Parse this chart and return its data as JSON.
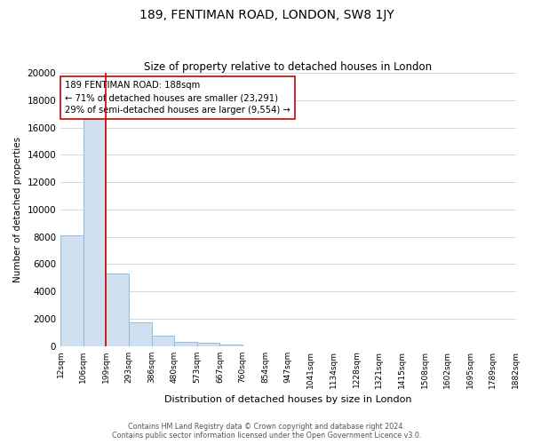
{
  "title": "189, FENTIMAN ROAD, LONDON, SW8 1JY",
  "subtitle": "Size of property relative to detached houses in London",
  "xlabel": "Distribution of detached houses by size in London",
  "ylabel": "Number of detached properties",
  "bar_values": [
    8100,
    16600,
    5300,
    1750,
    750,
    300,
    250,
    100,
    0,
    0,
    0,
    0,
    0,
    0,
    0,
    0,
    0,
    0,
    0,
    0
  ],
  "bin_labels": [
    "12sqm",
    "106sqm",
    "199sqm",
    "293sqm",
    "386sqm",
    "480sqm",
    "573sqm",
    "667sqm",
    "760sqm",
    "854sqm",
    "947sqm",
    "1041sqm",
    "1134sqm",
    "1228sqm",
    "1321sqm",
    "1415sqm",
    "1508sqm",
    "1602sqm",
    "1695sqm",
    "1789sqm",
    "1882sqm"
  ],
  "bar_color": "#cfe0f0",
  "bar_edge_color": "#8ab4d4",
  "vline_color": "#cc0000",
  "vline_pos": 2,
  "annotation_title": "189 FENTIMAN ROAD: 188sqm",
  "annotation_line1": "← 71% of detached houses are smaller (23,291)",
  "annotation_line2": "29% of semi-detached houses are larger (9,554) →",
  "ylim": [
    0,
    20000
  ],
  "yticks": [
    0,
    2000,
    4000,
    6000,
    8000,
    10000,
    12000,
    14000,
    16000,
    18000,
    20000
  ],
  "footer_line1": "Contains HM Land Registry data © Crown copyright and database right 2024.",
  "footer_line2": "Contains public sector information licensed under the Open Government Licence v3.0.",
  "background_color": "#ffffff",
  "grid_color": "#c8d4e4"
}
